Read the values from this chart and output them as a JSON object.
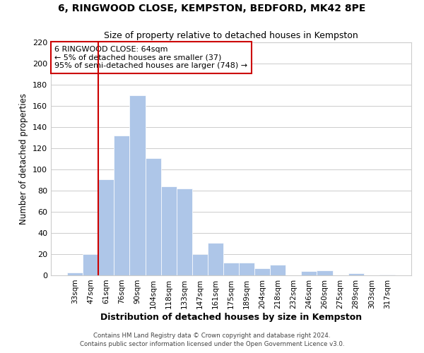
{
  "title": "6, RINGWOOD CLOSE, KEMPSTON, BEDFORD, MK42 8PE",
  "subtitle": "Size of property relative to detached houses in Kempston",
  "xlabel": "Distribution of detached houses by size in Kempston",
  "ylabel": "Number of detached properties",
  "bar_labels": [
    "33sqm",
    "47sqm",
    "61sqm",
    "76sqm",
    "90sqm",
    "104sqm",
    "118sqm",
    "133sqm",
    "147sqm",
    "161sqm",
    "175sqm",
    "189sqm",
    "204sqm",
    "218sqm",
    "232sqm",
    "246sqm",
    "260sqm",
    "275sqm",
    "289sqm",
    "303sqm",
    "317sqm"
  ],
  "bar_heights": [
    3,
    20,
    91,
    132,
    170,
    111,
    84,
    82,
    20,
    31,
    12,
    12,
    7,
    10,
    0,
    4,
    5,
    0,
    2,
    0,
    1
  ],
  "bar_color": "#aec6e8",
  "bar_edge_color": "#ffffff",
  "background_color": "#ffffff",
  "grid_color": "#cccccc",
  "vline_x_index": 2,
  "vline_color": "#cc0000",
  "ylim": [
    0,
    220
  ],
  "yticks": [
    0,
    20,
    40,
    60,
    80,
    100,
    120,
    140,
    160,
    180,
    200,
    220
  ],
  "annotation_title": "6 RINGWOOD CLOSE: 64sqm",
  "annotation_line1": "← 5% of detached houses are smaller (37)",
  "annotation_line2": "95% of semi-detached houses are larger (748) →",
  "annotation_box_color": "#ffffff",
  "annotation_box_edge": "#cc0000",
  "footer_line1": "Contains HM Land Registry data © Crown copyright and database right 2024.",
  "footer_line2": "Contains public sector information licensed under the Open Government Licence v3.0."
}
